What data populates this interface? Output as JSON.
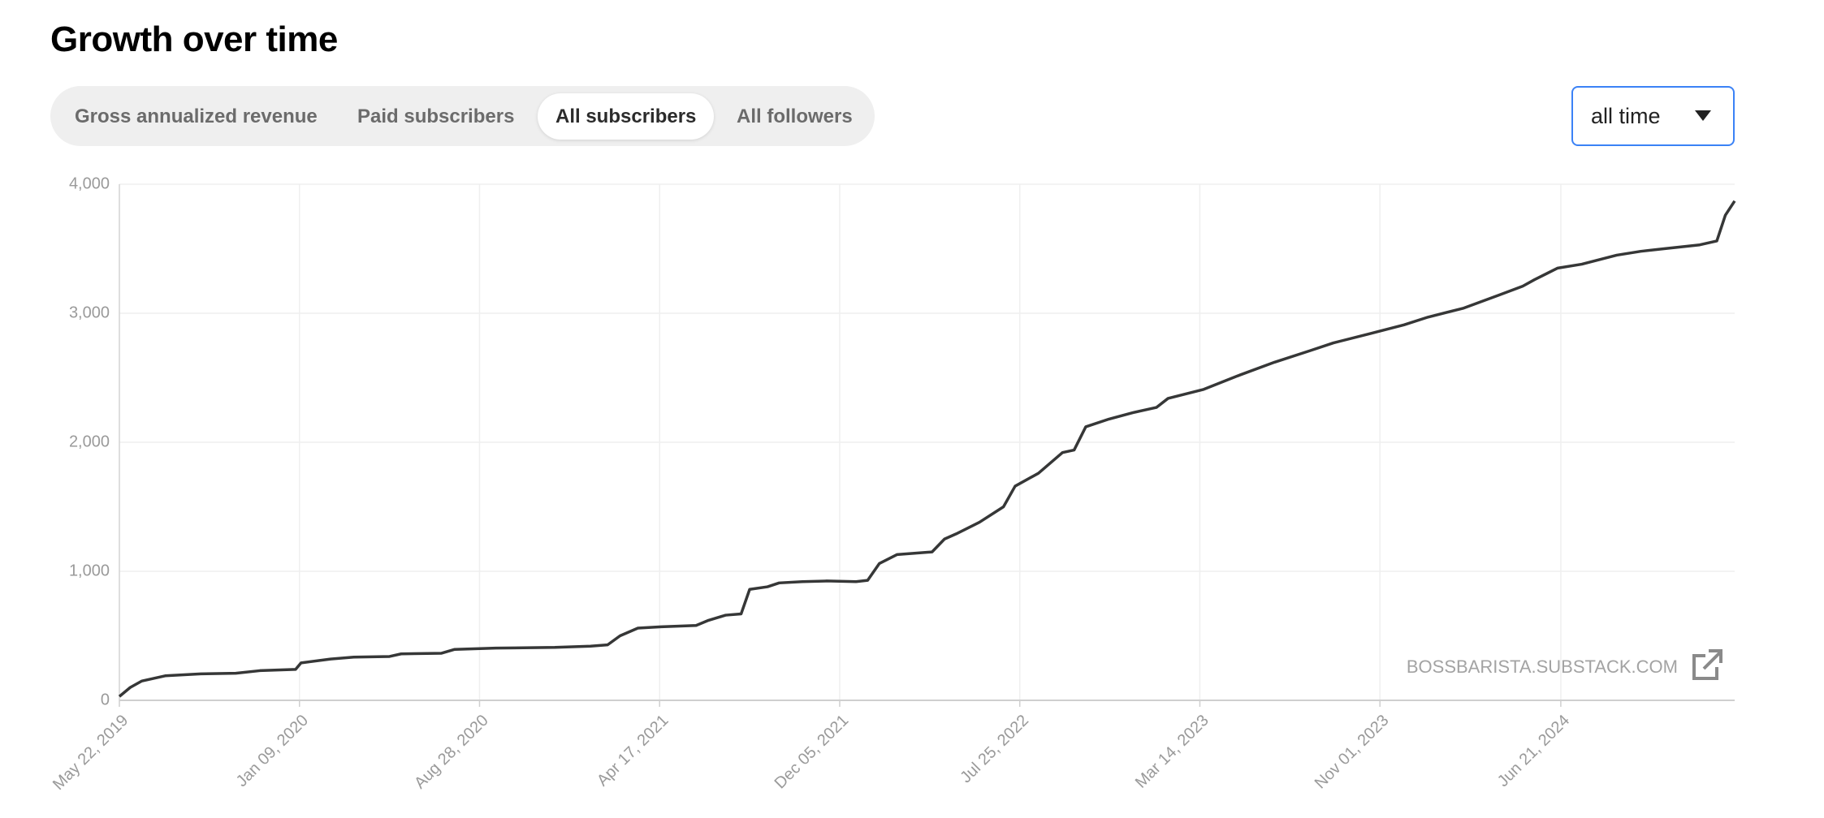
{
  "header": {
    "title": "Growth over time"
  },
  "tabs": {
    "items": [
      "Gross annualized revenue",
      "Paid subscribers",
      "All subscribers",
      "All followers"
    ],
    "active": 2
  },
  "dropdown": {
    "label": "all time"
  },
  "watermark": "BOSSBARISTA.SUBSTACK.COM",
  "chart_data": {
    "type": "line",
    "color": "#363737",
    "grid": true,
    "x": [
      "2019-05-22",
      "2019-06-05",
      "2019-06-20",
      "2019-07-20",
      "2019-09-04",
      "2019-10-19",
      "2019-11-19",
      "2020-01-04",
      "2020-01-11",
      "2020-02-18",
      "2020-03-19",
      "2020-05-04",
      "2020-05-19",
      "2020-07-10",
      "2020-07-27",
      "2020-09-18",
      "2020-12-03",
      "2021-01-18",
      "2021-02-09",
      "2021-02-25",
      "2021-03-20",
      "2021-04-19",
      "2021-06-03",
      "2021-06-19",
      "2021-07-11",
      "2021-07-31",
      "2021-08-11",
      "2021-09-03",
      "2021-09-18",
      "2021-10-18",
      "2021-11-18",
      "2021-12-26",
      "2022-01-10",
      "2022-01-25",
      "2022-02-17",
      "2022-04-03",
      "2022-04-19",
      "2022-05-04",
      "2022-06-03",
      "2022-07-04",
      "2022-07-19",
      "2022-08-18",
      "2022-09-18",
      "2022-10-03",
      "2022-10-18",
      "2022-11-17",
      "2022-12-18",
      "2023-01-17",
      "2023-02-01",
      "2023-03-19",
      "2023-05-04",
      "2023-06-18",
      "2023-08-03",
      "2023-09-02",
      "2023-10-18",
      "2023-12-02",
      "2024-01-02",
      "2024-02-17",
      "2024-04-02",
      "2024-05-03",
      "2024-05-18",
      "2024-06-17",
      "2024-07-18",
      "2024-09-01",
      "2024-10-02",
      "2024-11-01",
      "2024-12-17",
      "2025-01-08",
      "2025-01-19",
      "2025-01-31"
    ],
    "values": [
      30,
      100,
      150,
      190,
      205,
      210,
      230,
      240,
      290,
      320,
      335,
      340,
      360,
      365,
      395,
      405,
      410,
      420,
      430,
      500,
      560,
      570,
      580,
      620,
      660,
      670,
      860,
      880,
      910,
      920,
      925,
      920,
      930,
      1060,
      1130,
      1150,
      1250,
      1290,
      1380,
      1500,
      1660,
      1760,
      1920,
      1940,
      2120,
      2180,
      2230,
      2270,
      2340,
      2410,
      2520,
      2620,
      2710,
      2770,
      2840,
      2910,
      2970,
      3040,
      3140,
      3210,
      3260,
      3350,
      3380,
      3450,
      3480,
      3500,
      3530,
      3560,
      3760,
      3870
    ],
    "xlim": [
      "2019-05-22",
      "2025-01-31"
    ],
    "xticks": [
      {
        "value": "2019-05-22",
        "label": "May 22, 2019"
      },
      {
        "value": "2020-01-09",
        "label": "Jan 09, 2020"
      },
      {
        "value": "2020-08-28",
        "label": "Aug 28, 2020"
      },
      {
        "value": "2021-04-17",
        "label": "Apr 17, 2021"
      },
      {
        "value": "2021-12-05",
        "label": "Dec 05, 2021"
      },
      {
        "value": "2022-07-25",
        "label": "Jul 25, 2022"
      },
      {
        "value": "2023-03-14",
        "label": "Mar 14, 2023"
      },
      {
        "value": "2023-11-01",
        "label": "Nov 01, 2023"
      },
      {
        "value": "2024-06-21",
        "label": "Jun 21, 2024"
      }
    ],
    "ylim": [
      0,
      4000
    ],
    "yticks": [
      0,
      {
        "value": 1000,
        "label": "1,000"
      },
      {
        "value": 2000,
        "label": "2,000"
      },
      {
        "value": 3000,
        "label": "3,000"
      },
      {
        "value": 4000,
        "label": "4,000"
      }
    ]
  }
}
